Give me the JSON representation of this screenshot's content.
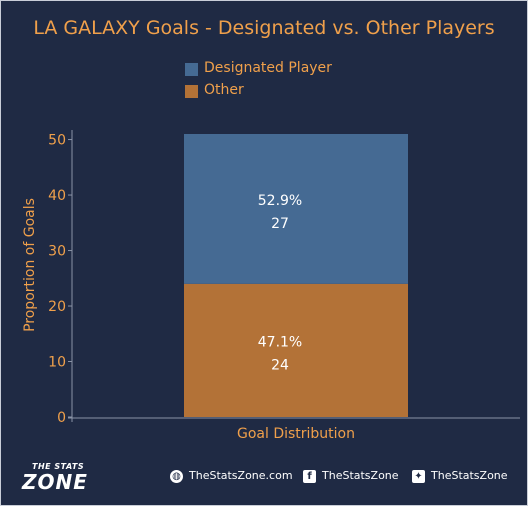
{
  "title": "LA GALAXY Goals - Designated vs. Other Players",
  "colors": {
    "background": "#1f2a44",
    "designated": "#456a93",
    "other": "#b37237",
    "text": "#f0a04b"
  },
  "chart_data": {
    "type": "bar",
    "stacked": true,
    "categories": [
      "Goal Distribution"
    ],
    "series": [
      {
        "name": "Other",
        "values": [
          24
        ],
        "percent_label": "47.1%",
        "count_label": "24"
      },
      {
        "name": "Designated Player",
        "values": [
          27
        ],
        "percent_label": "52.9%",
        "count_label": "27"
      }
    ],
    "xlabel": "Goal Distribution",
    "ylabel": "Proportion of Goals",
    "ylim": [
      0,
      51
    ],
    "yticks": [
      "0",
      "10",
      "20",
      "30",
      "40",
      "50"
    ],
    "legend_position": "top"
  },
  "footer": {
    "logo_small": "THE STATS",
    "logo_big": "ZONE",
    "website": "TheStatsZone.com",
    "facebook": "TheStatsZone",
    "twitter": "TheStatsZone",
    "website_icon": "globe-icon",
    "facebook_icon": "facebook-icon",
    "twitter_icon": "twitter-icon"
  }
}
